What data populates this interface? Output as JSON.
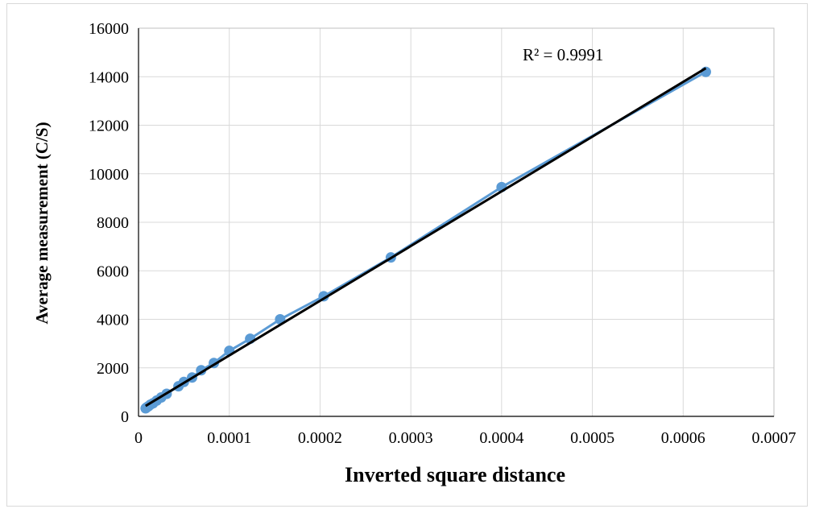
{
  "chart_data": {
    "type": "scatter",
    "title": "",
    "xlabel": "Inverted square distance",
    "ylabel": "Average measurement  (C/S)",
    "xlim": [
      0,
      0.0007
    ],
    "ylim": [
      0,
      16000
    ],
    "x_ticks": [
      "0",
      "0.0001",
      "0.0002",
      "0.0003",
      "0.0004",
      "0.0005",
      "0.0006",
      "0.0007"
    ],
    "y_ticks": [
      "0",
      "2000",
      "4000",
      "6000",
      "8000",
      "10000",
      "12000",
      "14000",
      "16000"
    ],
    "grid": "vertical and horizontal major gridlines",
    "legend": "none",
    "annotation": "R² = 0.9991",
    "series": [
      {
        "style": "markers joined by line",
        "color": "#5b9bd5",
        "points": [
          {
            "x": 7.8e-06,
            "y": 330
          },
          {
            "x": 9e-06,
            "y": 370
          },
          {
            "x": 1.1e-05,
            "y": 420
          },
          {
            "x": 1.3e-05,
            "y": 480
          },
          {
            "x": 1.6e-05,
            "y": 540
          },
          {
            "x": 2e-05,
            "y": 650
          },
          {
            "x": 2.5e-05,
            "y": 780
          },
          {
            "x": 3.1e-05,
            "y": 930
          },
          {
            "x": 4.4e-05,
            "y": 1240
          },
          {
            "x": 5e-05,
            "y": 1420
          },
          {
            "x": 5.9e-05,
            "y": 1600
          },
          {
            "x": 6.9e-05,
            "y": 1900
          },
          {
            "x": 8.3e-05,
            "y": 2200
          },
          {
            "x": 0.0001,
            "y": 2700
          },
          {
            "x": 0.000123,
            "y": 3200
          },
          {
            "x": 0.000156,
            "y": 4000
          },
          {
            "x": 0.000204,
            "y": 4950
          },
          {
            "x": 0.000278,
            "y": 6550
          },
          {
            "x": 0.0004,
            "y": 9450
          },
          {
            "x": 0.000625,
            "y": 14200
          }
        ]
      }
    ],
    "trendline": {
      "color": "#000000",
      "from": {
        "x": 7.8e-06,
        "y": 430
      },
      "to": {
        "x": 0.000625,
        "y": 14350
      }
    }
  }
}
